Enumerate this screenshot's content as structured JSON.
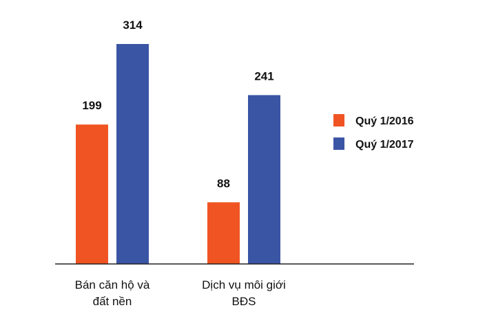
{
  "chart_data": {
    "type": "bar",
    "categories": [
      [
        "Bán căn hộ và",
        "đất nền"
      ],
      [
        "Dịch vụ môi giới",
        "BĐS"
      ]
    ],
    "series": [
      {
        "name": "Quý 1/2016",
        "color": "#f05423",
        "values": [
          199,
          88
        ]
      },
      {
        "name": "Quý 1/2017",
        "color": "#3b55a5",
        "values": [
          314,
          241
        ]
      }
    ],
    "ylim": [
      0,
      314
    ],
    "legend": "right",
    "grid": false
  }
}
